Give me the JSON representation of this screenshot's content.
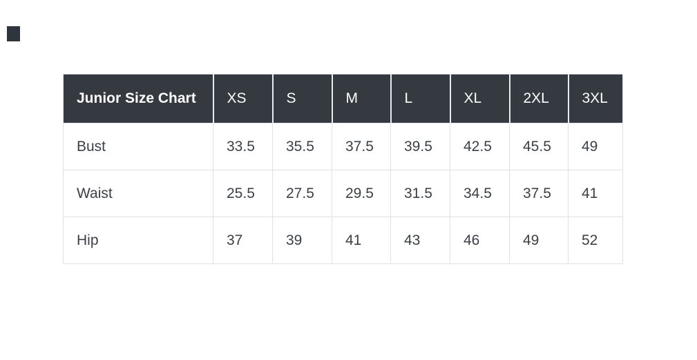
{
  "page": {
    "background_color": "#ffffff",
    "marker": {
      "description": "small dark square near top-left corner",
      "color": "#2f353d"
    }
  },
  "table": {
    "header": {
      "title": "Junior Size Chart",
      "sizes": [
        "XS",
        "S",
        "M",
        "L",
        "XL",
        "2XL",
        "3XL"
      ],
      "bg_color": "#343a40",
      "text_color": "#ffffff"
    },
    "rows": [
      {
        "label": "Bust",
        "values": [
          "33.5",
          "35.5",
          "37.5",
          "39.5",
          "42.5",
          "45.5",
          "49"
        ]
      },
      {
        "label": "Waist",
        "values": [
          "25.5",
          "27.5",
          "29.5",
          "31.5",
          "34.5",
          "37.5",
          "41"
        ]
      },
      {
        "label": "Hip",
        "values": [
          "37",
          "39",
          "41",
          "43",
          "46",
          "49",
          "52"
        ]
      }
    ],
    "border_color": "#dee2e6",
    "body_text_color": "#3a4046"
  },
  "chart_data": {
    "type": "table",
    "title": "Junior Size Chart",
    "columns": [
      "Junior Size Chart",
      "XS",
      "S",
      "M",
      "L",
      "XL",
      "2XL",
      "3XL"
    ],
    "rows": [
      [
        "Bust",
        33.5,
        35.5,
        37.5,
        39.5,
        42.5,
        45.5,
        49
      ],
      [
        "Waist",
        25.5,
        27.5,
        29.5,
        31.5,
        34.5,
        37.5,
        41
      ],
      [
        "Hip",
        37,
        39,
        41,
        43,
        46,
        49,
        52
      ]
    ]
  }
}
